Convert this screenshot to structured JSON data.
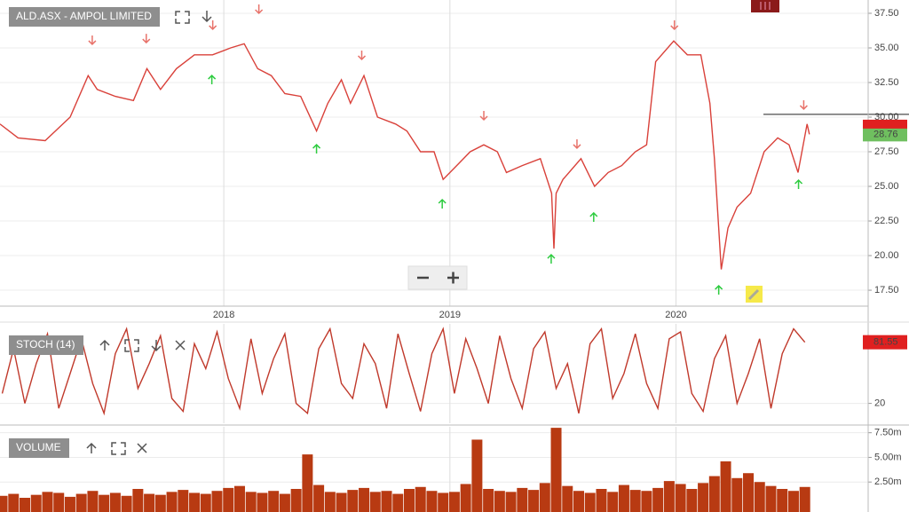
{
  "chart_data": [
    {
      "type": "line",
      "title": "ALD.ASX - AMPOL LIMITED",
      "x": [
        2017.01,
        2017.09,
        2017.21,
        2017.32,
        2017.4,
        2017.44,
        2017.52,
        2017.6,
        2017.66,
        2017.72,
        2017.79,
        2017.87,
        2017.95,
        2018.03,
        2018.09,
        2018.15,
        2018.21,
        2018.27,
        2018.34,
        2018.41,
        2018.46,
        2018.52,
        2018.56,
        2018.62,
        2018.68,
        2018.76,
        2018.81,
        2018.87,
        2018.93,
        2018.97,
        2019.03,
        2019.09,
        2019.15,
        2019.21,
        2019.25,
        2019.32,
        2019.4,
        2019.45,
        2019.46,
        2019.47,
        2019.5,
        2019.58,
        2019.64,
        2019.7,
        2019.76,
        2019.82,
        2019.87,
        2019.91,
        2019.99,
        2020.05,
        2020.11,
        2020.15,
        2020.17,
        2020.2,
        2020.23,
        2020.27,
        2020.33,
        2020.39,
        2020.45,
        2020.5,
        2020.54,
        2020.58,
        2020.59
      ],
      "series": [
        {
          "color": "#d9413a",
          "values": [
            29.5,
            28.5,
            28.3,
            30.0,
            33.0,
            32.0,
            31.5,
            31.2,
            33.5,
            32.0,
            33.5,
            34.5,
            34.5,
            35.0,
            35.3,
            33.5,
            33.0,
            31.7,
            31.5,
            29.0,
            31.0,
            32.7,
            31.0,
            33.0,
            30.0,
            29.5,
            29.0,
            27.5,
            27.5,
            25.5,
            26.5,
            27.5,
            28.0,
            27.5,
            26.0,
            26.5,
            27.0,
            24.5,
            20.5,
            24.5,
            25.5,
            27.0,
            25.0,
            26.0,
            26.5,
            27.5,
            28.0,
            34.0,
            35.5,
            34.5,
            34.5,
            31.0,
            27.0,
            19.0,
            22.0,
            23.5,
            24.5,
            27.5,
            28.5,
            28.0,
            26.0,
            29.5,
            28.76
          ]
        }
      ],
      "xlim": [
        2017.01,
        2020.85
      ],
      "xticks": [
        2018,
        2019,
        2020
      ],
      "ylim": [
        16.35,
        38.46
      ],
      "yticks": [
        {
          "value": 17.5,
          "label": "17.50"
        },
        {
          "value": 20,
          "label": "20.00"
        },
        {
          "value": 22.5,
          "label": "22.50"
        },
        {
          "value": 25,
          "label": "25.00"
        },
        {
          "value": 27.5,
          "label": "27.50"
        },
        {
          "value": 30,
          "label": "30.00"
        },
        {
          "value": 32.5,
          "label": "32.50"
        },
        {
          "value": 35,
          "label": "35.00"
        },
        {
          "value": 37.5,
          "label": "37.50"
        }
      ],
      "level_line": 30.2,
      "buy_signals": {
        "color": "#2ecc40",
        "x": [
          2017.947,
          2018.41,
          2018.966,
          2019.448,
          2019.636,
          2020.189,
          2020.542
        ],
        "values": [
          32.69,
          27.69,
          23.72,
          19.74,
          22.76,
          17.5,
          25.13
        ]
      },
      "sell_signals": {
        "color": "#e8736b",
        "x": [
          2017.418,
          2017.657,
          2017.951,
          2018.155,
          2018.61,
          2019.15,
          2019.562,
          2019.993,
          2020.565
        ],
        "values": [
          35.58,
          35.7,
          36.67,
          37.82,
          34.49,
          30.13,
          28.08,
          36.67,
          30.9
        ]
      },
      "grid": true
    },
    {
      "type": "line",
      "title": "STOCH (14)",
      "x": [
        2017.02,
        2017.07,
        2017.12,
        2017.17,
        2017.22,
        2017.27,
        2017.32,
        2017.37,
        2017.42,
        2017.47,
        2017.52,
        2017.57,
        2017.62,
        2017.67,
        2017.72,
        2017.77,
        2017.82,
        2017.87,
        2017.92,
        2017.97,
        2018.02,
        2018.07,
        2018.12,
        2018.17,
        2018.22,
        2018.27,
        2018.32,
        2018.37,
        2018.42,
        2018.47,
        2018.52,
        2018.57,
        2018.62,
        2018.67,
        2018.72,
        2018.77,
        2018.82,
        2018.87,
        2018.92,
        2018.97,
        2019.02,
        2019.07,
        2019.12,
        2019.17,
        2019.22,
        2019.27,
        2019.32,
        2019.37,
        2019.42,
        2019.47,
        2019.52,
        2019.57,
        2019.62,
        2019.67,
        2019.72,
        2019.77,
        2019.82,
        2019.87,
        2019.92,
        2019.97,
        2020.02,
        2020.07,
        2020.12,
        2020.17,
        2020.22,
        2020.27,
        2020.32,
        2020.37,
        2020.42,
        2020.47,
        2020.52,
        2020.57
      ],
      "series": [
        {
          "color": "#c0392b",
          "values": [
            30,
            75,
            20,
            60,
            90,
            15,
            50,
            85,
            40,
            10,
            70,
            95,
            35,
            60,
            88,
            25,
            12,
            80,
            55,
            92,
            45,
            15,
            85,
            30,
            65,
            90,
            20,
            10,
            75,
            95,
            40,
            25,
            80,
            60,
            15,
            90,
            50,
            12,
            70,
            95,
            30,
            85,
            55,
            20,
            88,
            45,
            15,
            75,
            92,
            35,
            60,
            10,
            80,
            95,
            25,
            50,
            90,
            40,
            15,
            85,
            92,
            30,
            12,
            65,
            88,
            20,
            50,
            85,
            15,
            70,
            95,
            81.55
          ]
        }
      ],
      "xlim": [
        2017.01,
        2020.85
      ],
      "xticks": [
        2018,
        2019,
        2020
      ],
      "ylim": [
        0,
        100
      ],
      "yticks": [
        20
      ],
      "grid": true
    },
    {
      "type": "bar",
      "title": "VOLUME",
      "color": "#b83a12",
      "x": [
        2017.02,
        2017.07,
        2017.12,
        2017.17,
        2017.22,
        2017.27,
        2017.32,
        2017.37,
        2017.42,
        2017.47,
        2017.52,
        2017.57,
        2017.62,
        2017.67,
        2017.72,
        2017.77,
        2017.82,
        2017.87,
        2017.92,
        2017.97,
        2018.02,
        2018.07,
        2018.12,
        2018.17,
        2018.22,
        2018.27,
        2018.32,
        2018.37,
        2018.42,
        2018.47,
        2018.52,
        2018.57,
        2018.62,
        2018.67,
        2018.72,
        2018.77,
        2018.82,
        2018.87,
        2018.92,
        2018.97,
        2019.02,
        2019.07,
        2019.12,
        2019.17,
        2019.22,
        2019.27,
        2019.32,
        2019.37,
        2019.42,
        2019.47,
        2019.52,
        2019.57,
        2019.62,
        2019.67,
        2019.72,
        2019.77,
        2019.82,
        2019.87,
        2019.92,
        2019.97,
        2020.02,
        2020.07,
        2020.12,
        2020.17,
        2020.22,
        2020.27,
        2020.32,
        2020.37,
        2020.42,
        2020.47,
        2020.52,
        2020.57
      ],
      "values": [
        1.1,
        1.3,
        0.9,
        1.2,
        1.5,
        1.4,
        1.0,
        1.3,
        1.6,
        1.2,
        1.4,
        1.1,
        1.8,
        1.3,
        1.2,
        1.5,
        1.7,
        1.4,
        1.3,
        1.6,
        1.9,
        2.1,
        1.5,
        1.4,
        1.6,
        1.3,
        1.8,
        5.3,
        2.2,
        1.5,
        1.4,
        1.7,
        1.9,
        1.5,
        1.6,
        1.3,
        1.8,
        2.0,
        1.6,
        1.4,
        1.5,
        2.3,
        6.8,
        1.8,
        1.6,
        1.5,
        1.9,
        1.7,
        2.4,
        8.0,
        2.1,
        1.6,
        1.4,
        1.8,
        1.5,
        2.2,
        1.7,
        1.6,
        1.9,
        2.6,
        2.3,
        1.8,
        2.4,
        3.1,
        4.6,
        2.9,
        3.4,
        2.5,
        2.1,
        1.8,
        1.6,
        2.0
      ],
      "xlim": [
        2017.01,
        2020.85
      ],
      "xticks": [
        2018,
        2019,
        2020
      ],
      "ylim": [
        0,
        8.1
      ],
      "yticks": [
        {
          "value": 2.5,
          "label": "2.50m"
        },
        {
          "value": 5,
          "label": "5.00m"
        },
        {
          "value": 7.5,
          "label": "7.50m"
        }
      ],
      "grid": true
    }
  ]
}
